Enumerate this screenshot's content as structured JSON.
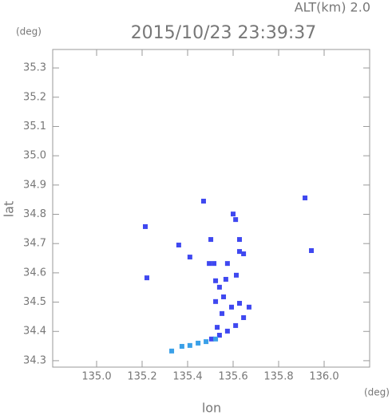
{
  "chart_data": {
    "type": "scatter",
    "title": "2015/10/23 23:39:37",
    "altitude_label": "ALT(km) 2.0",
    "x_label": "lon",
    "y_label": "lat",
    "x_unit": "(deg)",
    "y_unit": "(deg)",
    "xlim": [
      134.807,
      136.2
    ],
    "ylim": [
      34.278,
      35.363
    ],
    "xticks": [
      {
        "value": 135.0,
        "label": "135.0"
      },
      135.2,
      135.4,
      135.6,
      135.8,
      {
        "value": 136.0,
        "label": "136.0"
      }
    ],
    "yticks": [
      34.3,
      34.4,
      34.5,
      34.6,
      34.7,
      34.8,
      34.9,
      {
        "value": 35.0,
        "label": "35.0"
      },
      35.1,
      35.2,
      35.3
    ],
    "series": [
      {
        "color": "#3f48f0",
        "x": [
          135.214,
          135.221,
          135.361,
          135.41,
          135.495,
          135.516,
          135.523,
          135.54,
          135.523,
          135.558,
          135.551,
          135.593,
          135.628,
          135.67,
          135.646,
          135.611,
          135.575,
          135.54,
          135.505,
          135.53,
          135.628,
          135.646,
          135.575,
          135.568,
          135.614,
          135.611,
          135.6,
          135.944,
          135.916,
          135.47,
          135.502,
          135.628
        ],
        "values": [
          34.758,
          34.583,
          34.695,
          34.654,
          34.632,
          34.632,
          34.573,
          34.551,
          34.502,
          34.518,
          34.461,
          34.483,
          34.496,
          34.483,
          34.447,
          34.42,
          34.401,
          34.387,
          34.374,
          34.414,
          34.673,
          34.665,
          34.632,
          34.578,
          34.592,
          34.782,
          34.801,
          34.676,
          34.856,
          34.845,
          34.714,
          34.714
        ]
      },
      {
        "color": "#3aa0e8",
        "x": [
          135.33,
          135.375,
          135.41,
          135.446,
          135.481,
          135.523
        ],
        "values": [
          34.333,
          34.349,
          34.352,
          34.36,
          34.365,
          34.374
        ]
      }
    ]
  }
}
